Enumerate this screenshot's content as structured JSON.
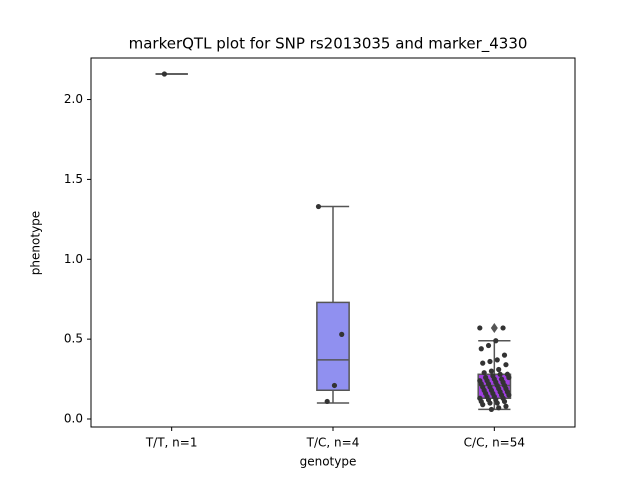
{
  "chart_data": {
    "type": "box",
    "title": "markerQTL plot for SNP rs2013035 and marker_4330",
    "xlabel": "genotype",
    "ylabel": "phenotype",
    "categories": [
      "T/T, n=1",
      "T/C, n=4",
      "C/C, n=54"
    ],
    "ylim": [
      -0.05,
      2.26
    ],
    "yticks": [
      {
        "value": 0,
        "label": "0.0"
      },
      {
        "value": 0.5,
        "label": "0.5"
      },
      {
        "value": 1,
        "label": "1.0"
      },
      {
        "value": 1.5,
        "label": "1.5"
      },
      {
        "value": 2,
        "label": "2.0"
      }
    ],
    "point_color": "#333333",
    "edge_color": "#555555",
    "boxes": [
      {
        "color": "#9090f0",
        "whislo": 2.16,
        "q1": 2.16,
        "med": 2.16,
        "q3": 2.16,
        "whishi": 2.16,
        "fliers": [],
        "points": [
          2.16
        ]
      },
      {
        "color": "#9090f0",
        "whislo": 0.1,
        "q1": 0.18,
        "med": 0.37,
        "q3": 0.73,
        "whishi": 1.33,
        "fliers": [],
        "points": [
          1.33,
          0.53,
          0.21,
          0.11
        ]
      },
      {
        "color": "#a040e0",
        "whislo": 0.06,
        "q1": 0.13,
        "med": 0.21,
        "q3": 0.28,
        "whishi": 0.49,
        "fliers": [
          0.57
        ],
        "points": [
          0.57,
          0.57,
          0.49,
          0.46,
          0.44,
          0.4,
          0.37,
          0.36,
          0.35,
          0.34,
          0.31,
          0.3,
          0.29,
          0.28,
          0.28,
          0.27,
          0.26,
          0.26,
          0.25,
          0.25,
          0.24,
          0.24,
          0.23,
          0.23,
          0.22,
          0.22,
          0.21,
          0.21,
          0.2,
          0.2,
          0.19,
          0.19,
          0.18,
          0.18,
          0.17,
          0.17,
          0.16,
          0.16,
          0.15,
          0.15,
          0.14,
          0.14,
          0.13,
          0.13,
          0.12,
          0.12,
          0.11,
          0.11,
          0.1,
          0.1,
          0.09,
          0.08,
          0.07,
          0.06
        ]
      }
    ]
  }
}
